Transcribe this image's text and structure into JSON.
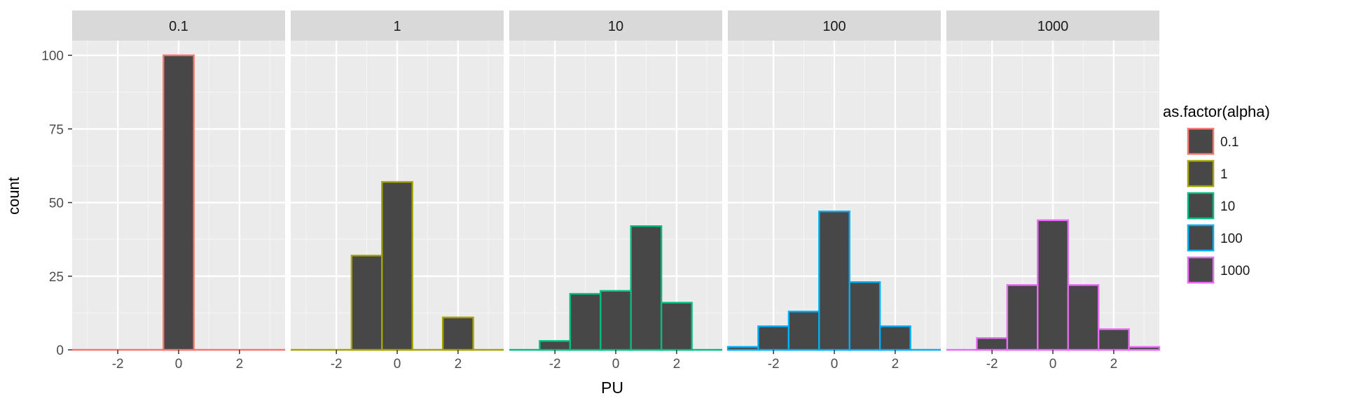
{
  "chart_data": {
    "type": "bar",
    "facet_labels": [
      "0.1",
      "1",
      "10",
      "100",
      "1000"
    ],
    "xlabel": "PU",
    "ylabel": "count",
    "x_ticks": [
      "-2",
      "0",
      "2"
    ],
    "y_ticks": [
      "0",
      "25",
      "50",
      "75",
      "100"
    ],
    "xlim": [
      -3.5,
      3.5
    ],
    "ylim": [
      0,
      105
    ],
    "bins": [
      -3,
      -2,
      -1,
      0,
      1,
      2,
      3
    ],
    "bin_width": 1,
    "grid": true,
    "legend_position": "right",
    "legend": {
      "title": "as.factor(alpha)",
      "entries": [
        "0.1",
        "1",
        "10",
        "100",
        "1000"
      ]
    },
    "colors": {
      "bar_fill": "#474747",
      "panel_bg": "#ebebeb",
      "strip_bg": "#d9d9d9",
      "grid": "#ffffff"
    },
    "series": [
      {
        "name": "0.1",
        "color": "#f8766d",
        "values": [
          0,
          0,
          0,
          100,
          0,
          0,
          0
        ]
      },
      {
        "name": "1",
        "color": "#a3a500",
        "values": [
          0,
          0,
          32,
          57,
          0,
          11,
          0
        ]
      },
      {
        "name": "10",
        "color": "#00bf7d",
        "values": [
          0,
          3,
          19,
          20,
          42,
          16,
          0
        ]
      },
      {
        "name": "100",
        "color": "#00b0f6",
        "values": [
          1,
          8,
          13,
          47,
          23,
          8,
          0
        ]
      },
      {
        "name": "1000",
        "color": "#e76bf3",
        "values": [
          0,
          4,
          22,
          44,
          22,
          7,
          1
        ]
      }
    ]
  }
}
